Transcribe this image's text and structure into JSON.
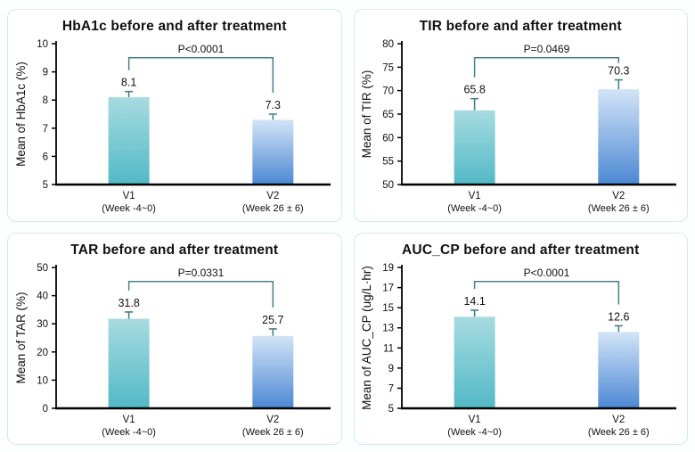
{
  "page": {
    "background": "#fdfefe",
    "panel_background": "#ffffff",
    "panel_border": "#d8e9eb"
  },
  "styles": {
    "bracket_color": "#44808f",
    "error_bar_color": "#44808f",
    "axis_color": "#000000",
    "text_color": "#111111",
    "teal_top": "#a7dbe0",
    "teal_bottom": "#52b9c6",
    "blue_top": "#d3e4f7",
    "blue_bottom": "#4c88d4"
  },
  "chart_data": [
    {
      "type": "bar",
      "title": "HbA1c before and after treatment",
      "ylabel": "Mean of HbA1c (%)",
      "ylim": [
        5,
        10
      ],
      "yticks": [
        5,
        6,
        7,
        8,
        9,
        10
      ],
      "categories": [
        "V1",
        "V2"
      ],
      "category_sublabels": [
        "(Week -4~0)",
        "(Week 26 ± 6)"
      ],
      "values": [
        8.1,
        7.3
      ],
      "errors": [
        0.2,
        0.2
      ],
      "value_labels": [
        "8.1",
        "7.3"
      ],
      "p_label": "P<0.0001",
      "bar_styles": [
        "teal",
        "blue"
      ],
      "grid": false,
      "legend": "none"
    },
    {
      "type": "bar",
      "title": "TIR before and after treatment",
      "ylabel": "Mean of TIR (%)",
      "ylim": [
        50,
        80
      ],
      "yticks": [
        50,
        55,
        60,
        65,
        70,
        75,
        80
      ],
      "categories": [
        "V1",
        "V2"
      ],
      "category_sublabels": [
        "(Week -4~0)",
        "(Week 26 ± 6)"
      ],
      "values": [
        65.8,
        70.3
      ],
      "errors": [
        2.5,
        2.0
      ],
      "value_labels": [
        "65.8",
        "70.3"
      ],
      "p_label": "P=0.0469",
      "bar_styles": [
        "teal",
        "blue"
      ],
      "grid": false,
      "legend": "none"
    },
    {
      "type": "bar",
      "title": "TAR before and after treatment",
      "ylabel": "Mean of TAR (%)",
      "ylim": [
        0,
        50
      ],
      "yticks": [
        0,
        10,
        20,
        30,
        40,
        50
      ],
      "categories": [
        "V1",
        "V2"
      ],
      "category_sublabels": [
        "(Week -4~0)",
        "(Week 26 ± 6)"
      ],
      "values": [
        31.8,
        25.7
      ],
      "errors": [
        2.4,
        2.5
      ],
      "value_labels": [
        "31.8",
        "25.7"
      ],
      "p_label": "P=0.0331",
      "bar_styles": [
        "teal",
        "blue"
      ],
      "grid": false,
      "legend": "none"
    },
    {
      "type": "bar",
      "title": "AUC_CP before and after treatment",
      "ylabel": "Mean of  AUC_CP (ug/L·hr)",
      "ylim": [
        5,
        19
      ],
      "yticks": [
        5,
        7,
        9,
        11,
        13,
        15,
        17,
        19
      ],
      "categories": [
        "V1",
        "V2"
      ],
      "category_sublabels": [
        "(Week -4~0)",
        "(Week 26 ± 6)"
      ],
      "values": [
        14.1,
        12.6
      ],
      "errors": [
        0.65,
        0.6
      ],
      "value_labels": [
        "14.1",
        "12.6"
      ],
      "p_label": "P<0.0001",
      "bar_styles": [
        "teal",
        "blue"
      ],
      "grid": false,
      "legend": "none"
    }
  ]
}
